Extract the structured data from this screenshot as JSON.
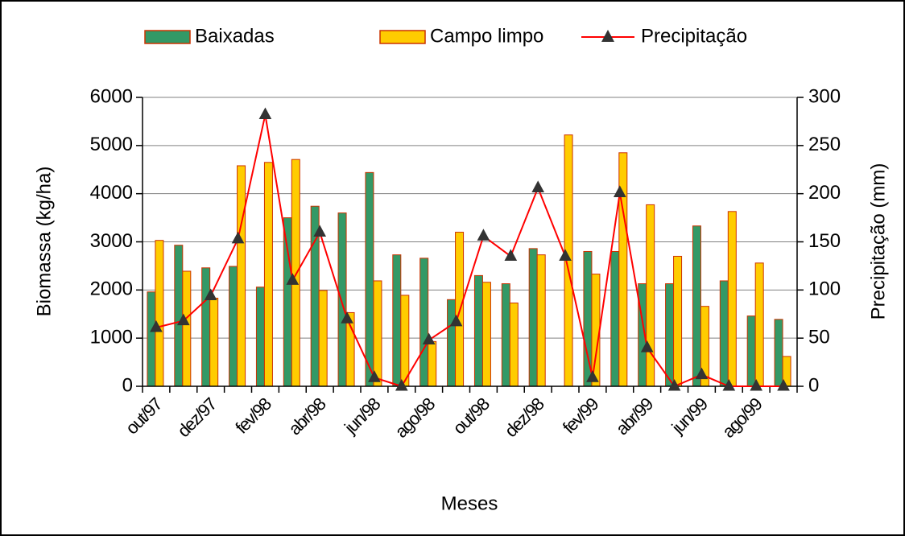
{
  "chart_data": {
    "type": "bar-line",
    "xlabel": "Meses",
    "ylabel": "Biomassa (kg/ha)",
    "y2label": "Precipitação (mm)",
    "categories": [
      "out/97",
      null,
      "dez/97",
      null,
      "fev/98",
      null,
      "abr/98",
      null,
      "jun/98",
      null,
      "ago/98",
      null,
      "out/98",
      null,
      "dez/98",
      null,
      "fev/99",
      null,
      "abr/99",
      null,
      "jun/99",
      null,
      "ago/99",
      null
    ],
    "series": [
      {
        "name": "Baixadas",
        "color": "#339966",
        "type": "bar",
        "values": [
          1960,
          2930,
          2460,
          2490,
          2060,
          3500,
          3740,
          3600,
          4440,
          2730,
          2660,
          1800,
          2300,
          2130,
          2860,
          0,
          2800,
          2800,
          2130,
          2130,
          3330,
          2190,
          1460,
          1390
        ]
      },
      {
        "name": "Campo limpo",
        "color": "#ffcc00",
        "type": "bar",
        "values": [
          3030,
          2390,
          1830,
          4580,
          4650,
          4710,
          1990,
          1530,
          2190,
          1890,
          930,
          3200,
          2160,
          1730,
          2730,
          5220,
          2330,
          4850,
          3770,
          2700,
          1660,
          3630,
          2560,
          620
        ]
      },
      {
        "name": "Precipitação",
        "color": "#ff0000",
        "type": "line",
        "axis": "y2",
        "values": [
          61,
          68,
          94,
          153,
          282,
          110,
          160,
          70,
          9,
          0,
          48,
          67,
          156,
          135,
          206,
          135,
          9,
          201,
          40,
          0,
          12,
          0,
          0,
          0
        ]
      }
    ],
    "ylim": [
      0,
      6000
    ],
    "yticks": [
      0,
      1000,
      2000,
      3000,
      4000,
      5000,
      6000
    ],
    "y2lim": [
      0,
      300
    ],
    "y2ticks": [
      0,
      50,
      100,
      150,
      200,
      250,
      300
    ],
    "grid": true,
    "legend": "top"
  }
}
